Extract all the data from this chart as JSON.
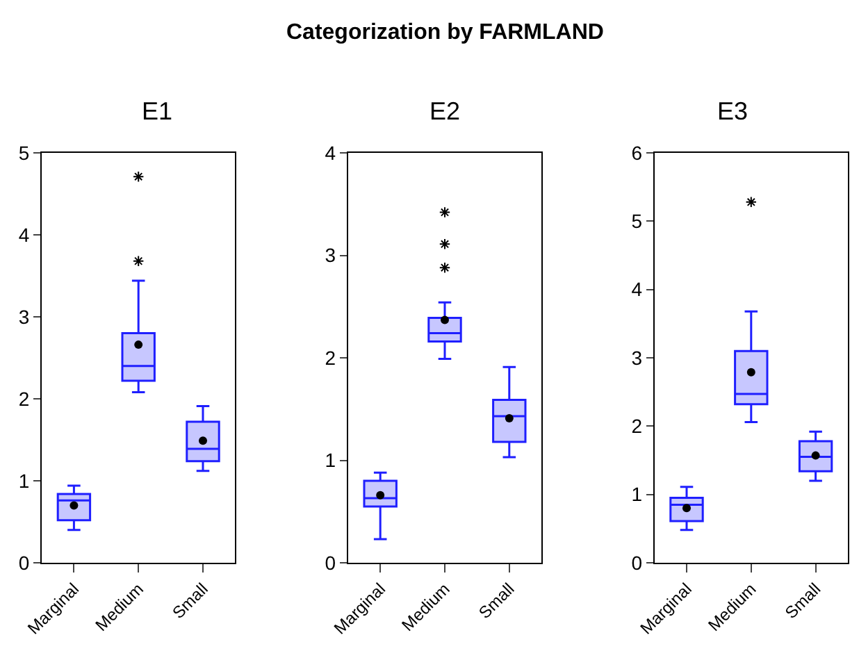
{
  "chart_data": [
    {
      "type": "box",
      "title": "E1",
      "annotations": [
        "Categorization by FARMLAND"
      ],
      "categories": [
        "Marginal",
        "Medium",
        "Small"
      ],
      "ylim": [
        0,
        5
      ],
      "yticks": [
        0,
        1,
        2,
        3,
        4,
        5
      ],
      "series": [
        {
          "color": "#1f1fff",
          "boxes": [
            {
              "low": 0.4,
              "q1": 0.52,
              "median": 0.76,
              "q3": 0.84,
              "high": 0.94,
              "mean": 0.7
            },
            {
              "low": 2.08,
              "q1": 2.22,
              "median": 2.4,
              "q3": 2.8,
              "high": 3.44,
              "mean": 2.66,
              "outliers": [
                3.68,
                4.71
              ]
            },
            {
              "low": 1.12,
              "q1": 1.24,
              "median": 1.39,
              "q3": 1.72,
              "high": 1.91,
              "mean": 1.49
            }
          ]
        }
      ]
    },
    {
      "type": "box",
      "title": "E2",
      "categories": [
        "Marginal",
        "Medium",
        "Small"
      ],
      "ylim": [
        0,
        4
      ],
      "yticks": [
        0,
        1,
        2,
        3,
        4
      ],
      "series": [
        {
          "color": "#1f1fff",
          "boxes": [
            {
              "low": 0.23,
              "q1": 0.55,
              "median": 0.63,
              "q3": 0.8,
              "high": 0.88,
              "mean": 0.66
            },
            {
              "low": 1.99,
              "q1": 2.16,
              "median": 2.24,
              "q3": 2.39,
              "high": 2.54,
              "mean": 2.37,
              "outliers": [
                2.88,
                3.11,
                3.42
              ]
            },
            {
              "low": 1.03,
              "q1": 1.18,
              "median": 1.43,
              "q3": 1.59,
              "high": 1.91,
              "mean": 1.41
            }
          ]
        }
      ]
    },
    {
      "type": "box",
      "title": "E3",
      "categories": [
        "Marginal",
        "Medium",
        "Small"
      ],
      "ylim": [
        0,
        6
      ],
      "yticks": [
        0,
        1,
        2,
        3,
        4,
        5,
        6
      ],
      "series": [
        {
          "color": "#1f1fff",
          "boxes": [
            {
              "low": 0.48,
              "q1": 0.61,
              "median": 0.85,
              "q3": 0.95,
              "high": 1.11,
              "mean": 0.8
            },
            {
              "low": 2.06,
              "q1": 2.32,
              "median": 2.47,
              "q3": 3.1,
              "high": 3.68,
              "mean": 2.79,
              "outliers": [
                5.28
              ]
            },
            {
              "low": 1.2,
              "q1": 1.34,
              "median": 1.55,
              "q3": 1.78,
              "high": 1.92,
              "mean": 1.57
            }
          ]
        }
      ]
    }
  ]
}
